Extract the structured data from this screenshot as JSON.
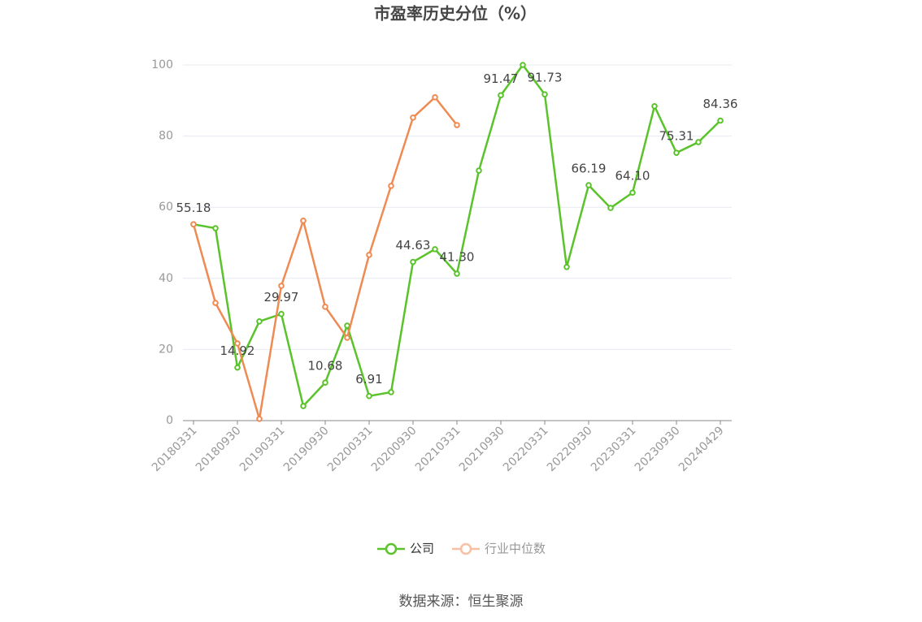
{
  "chart_data": {
    "type": "line",
    "title": "市盈率历史分位（%）",
    "source": "数据来源：恒生聚源",
    "categories": [
      "20180331",
      null,
      "20180930",
      null,
      "20190331",
      null,
      "20190930",
      null,
      "20200331",
      null,
      "20200930",
      null,
      "20210331",
      null,
      "20210930",
      null,
      "20220331",
      null,
      "20220930",
      null,
      "20230331",
      null,
      "20230930",
      null,
      "20240429"
    ],
    "series": [
      {
        "name": "公司",
        "color": "#5ac32b",
        "values": [
          55.18,
          54.1,
          14.92,
          27.9,
          29.97,
          4.1,
          10.68,
          26.7,
          6.91,
          8.0,
          44.63,
          48.2,
          41.3,
          70.3,
          91.47,
          100,
          91.73,
          43.2,
          66.19,
          59.8,
          64.1,
          88.4,
          75.31,
          78.3,
          84.36
        ],
        "value_labels": [
          "55.18",
          null,
          "14.92",
          null,
          "29.97",
          null,
          "10.68",
          null,
          "6.91",
          null,
          "44.63",
          null,
          "41.30",
          null,
          "91.47",
          null,
          "91.73",
          null,
          "66.19",
          null,
          "64.10",
          null,
          "75.31",
          null,
          "84.36"
        ]
      },
      {
        "name": "行业中位数",
        "color": "#ef8a52",
        "values": [
          55.2,
          33.1,
          21.7,
          0.5,
          37.9,
          56.2,
          32.0,
          23.3,
          46.6,
          66.0,
          85.2,
          90.9,
          83.1,
          null,
          null,
          null,
          null,
          null,
          null,
          null,
          null,
          null,
          null,
          null,
          null
        ]
      }
    ],
    "ylim": [
      0,
      100
    ],
    "yticks": [
      0,
      20,
      40,
      60,
      80,
      100
    ],
    "grid": true,
    "legend": "bottom"
  }
}
